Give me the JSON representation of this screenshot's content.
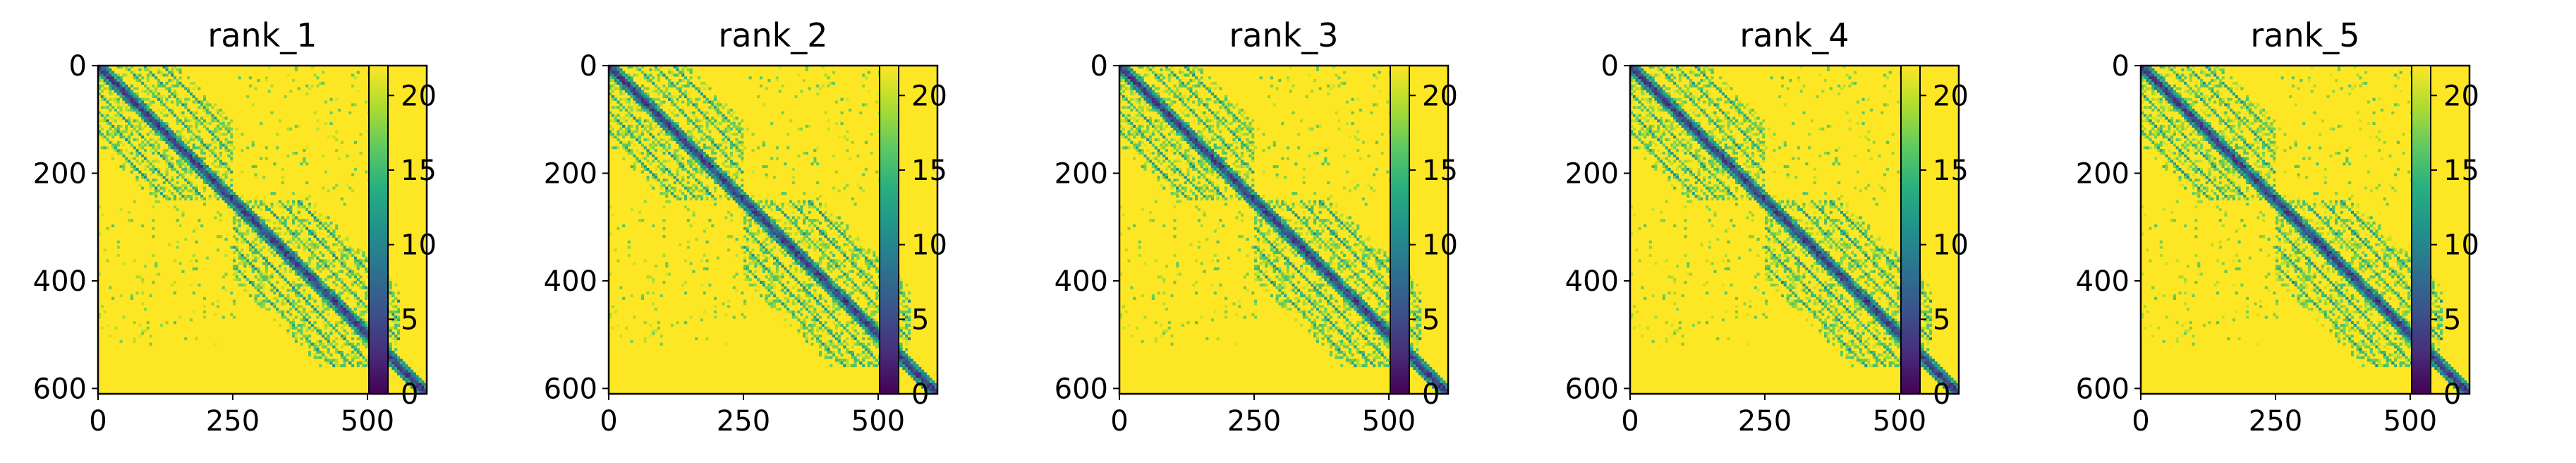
{
  "chart_data": {
    "type": "heatmap",
    "description_free": true,
    "colormap": "viridis",
    "colors": {
      "viridis": [
        "#440154",
        "#472d7b",
        "#3b528b",
        "#2c728e",
        "#21918c",
        "#28ae80",
        "#5ec962",
        "#addc30",
        "#fde725"
      ],
      "background": "#ffffff",
      "axis": "#000000"
    },
    "matrix_size": 610,
    "color_range": [
      0,
      22
    ],
    "colorbar_ticks": [
      0,
      5,
      10,
      15,
      20
    ],
    "colorbar_tick_labels": [
      "0",
      "5",
      "10",
      "15",
      "20"
    ],
    "x_ticks": [
      0,
      250,
      500
    ],
    "x_tick_labels": [
      "0",
      "250",
      "500"
    ],
    "y_ticks": [
      0,
      200,
      400,
      600
    ],
    "y_tick_labels": [
      "0",
      "200",
      "400",
      "600"
    ],
    "panels": [
      {
        "title": "rank_1"
      },
      {
        "title": "rank_2"
      },
      {
        "title": "rank_3"
      },
      {
        "title": "rank_4"
      },
      {
        "title": "rank_5"
      }
    ]
  }
}
